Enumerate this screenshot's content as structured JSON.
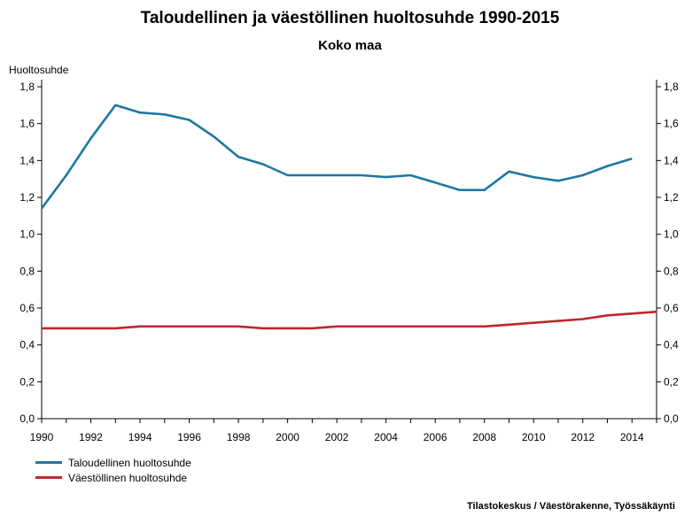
{
  "chart_data": {
    "type": "line",
    "title": "Taloudellinen ja väestöllinen huoltosuhde 1990-2015",
    "subtitle": "Koko maa",
    "ylabel": "Huoltosuhde",
    "xlabel": "",
    "xlim": [
      1990,
      2015
    ],
    "ylim": [
      0,
      1.8
    ],
    "x_ticks": [
      1990,
      1992,
      1994,
      1996,
      1998,
      2000,
      2002,
      2004,
      2006,
      2008,
      2010,
      2012,
      2014
    ],
    "x_tick_labels": [
      "1990",
      "1992",
      "1994",
      "1996",
      "1998",
      "2000",
      "2002",
      "2004",
      "2006",
      "2008",
      "2010",
      "2012",
      "2014"
    ],
    "y_ticks": [
      0,
      0.2,
      0.4,
      0.6,
      0.8,
      1.0,
      1.2,
      1.4,
      1.6,
      1.8
    ],
    "y_tick_labels": [
      "0,0",
      "0,2",
      "0,4",
      "0,6",
      "0,8",
      "1,0",
      "1,2",
      "1,4",
      "1,6",
      "1,8"
    ],
    "grid": false,
    "legend_position": "bottom-left",
    "series": [
      {
        "name": "Taloudellinen huoltosuhde",
        "color": "#1f77a0",
        "x": [
          1990,
          1991,
          1992,
          1993,
          1994,
          1995,
          1996,
          1997,
          1998,
          1999,
          2000,
          2001,
          2002,
          2003,
          2004,
          2005,
          2006,
          2007,
          2008,
          2009,
          2010,
          2011,
          2012,
          2013,
          2014
        ],
        "values": [
          1.14,
          1.32,
          1.52,
          1.7,
          1.66,
          1.65,
          1.62,
          1.53,
          1.42,
          1.38,
          1.32,
          1.32,
          1.32,
          1.32,
          1.31,
          1.32,
          1.28,
          1.24,
          1.24,
          1.34,
          1.31,
          1.29,
          1.32,
          1.37,
          1.41
        ]
      },
      {
        "name": "Väestöllinen huoltosuhde",
        "color": "#c1272d",
        "x": [
          1990,
          1991,
          1992,
          1993,
          1994,
          1995,
          1996,
          1997,
          1998,
          1999,
          2000,
          2001,
          2002,
          2003,
          2004,
          2005,
          2006,
          2007,
          2008,
          2009,
          2010,
          2011,
          2012,
          2013,
          2014,
          2015
        ],
        "values": [
          0.49,
          0.49,
          0.49,
          0.49,
          0.5,
          0.5,
          0.5,
          0.5,
          0.5,
          0.49,
          0.49,
          0.49,
          0.5,
          0.5,
          0.5,
          0.5,
          0.5,
          0.5,
          0.5,
          0.51,
          0.52,
          0.53,
          0.54,
          0.56,
          0.57,
          0.58
        ]
      }
    ]
  },
  "source": "Tilastokeskus / Väestörakenne, Työssäkäynti"
}
